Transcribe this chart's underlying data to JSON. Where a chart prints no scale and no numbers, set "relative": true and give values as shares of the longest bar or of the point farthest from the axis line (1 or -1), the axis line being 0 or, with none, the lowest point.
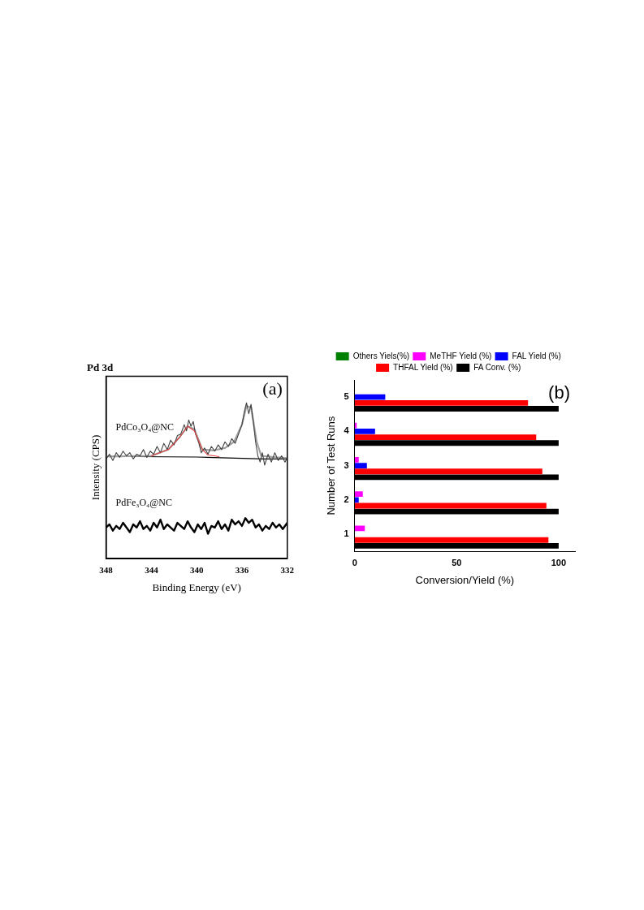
{
  "chart_data": [
    {
      "type": "line",
      "title": "Pd 3d",
      "xlabel": "Binding Energy (eV)",
      "ylabel": "Intensity (CPS)",
      "relative": true,
      "xlim": [
        348,
        332
      ],
      "xticks": [
        348,
        344,
        340,
        336,
        332
      ],
      "grid": false,
      "legend": false,
      "annotations": [
        "(a)"
      ],
      "series": [
        {
          "name": "PdCo₃O₄@NC",
          "color": "#404040",
          "x": [
            348,
            347.7,
            347.4,
            347.1,
            346.8,
            346.5,
            346.2,
            345.9,
            345.6,
            345.3,
            345.0,
            344.7,
            344.4,
            344.1,
            343.8,
            343.5,
            343.2,
            342.9,
            342.6,
            342.3,
            342.0,
            341.7,
            341.4,
            341.1,
            340.9,
            340.7,
            340.5,
            340.3,
            340.1,
            339.8,
            339.6,
            339.3,
            339.0,
            338.7,
            338.4,
            338.1,
            337.8,
            337.5,
            337.2,
            336.9,
            336.6,
            336.3,
            336.0,
            335.8,
            335.6,
            335.4,
            335.2,
            335.0,
            334.8,
            334.6,
            334.4,
            334.2,
            334.0,
            333.7,
            333.4,
            333.1,
            332.8,
            332.5,
            332.2,
            332.0
          ],
          "values": [
            0.64,
            0.67,
            0.63,
            0.68,
            0.65,
            0.69,
            0.66,
            0.68,
            0.64,
            0.67,
            0.66,
            0.7,
            0.65,
            0.69,
            0.67,
            0.72,
            0.68,
            0.74,
            0.7,
            0.76,
            0.73,
            0.79,
            0.8,
            0.86,
            0.82,
            0.89,
            0.85,
            0.88,
            0.8,
            0.74,
            0.68,
            0.71,
            0.67,
            0.72,
            0.69,
            0.73,
            0.7,
            0.75,
            0.72,
            0.77,
            0.74,
            0.8,
            0.86,
            0.94,
            1.0,
            0.93,
            0.99,
            0.88,
            0.75,
            0.66,
            0.62,
            0.68,
            0.6,
            0.67,
            0.62,
            0.68,
            0.63,
            0.66,
            0.62,
            0.65
          ]
        },
        {
          "color": "#a0a0a0",
          "x": [
            348,
            344,
            342.5,
            341.5,
            340.8,
            340.2,
            339.5,
            338.5,
            337.5,
            336.7,
            336.0,
            335.6,
            335.2,
            334.7,
            334.3,
            333,
            332
          ],
          "values": [
            0.655,
            0.66,
            0.7,
            0.78,
            0.85,
            0.83,
            0.7,
            0.695,
            0.71,
            0.75,
            0.86,
            0.98,
            0.97,
            0.75,
            0.66,
            0.65,
            0.645
          ]
        },
        {
          "color": "#e04040",
          "x": [
            344,
            342.5,
            341.5,
            340.8,
            340.2,
            339.5,
            339,
            338
          ],
          "values": [
            0.66,
            0.7,
            0.78,
            0.85,
            0.82,
            0.7,
            0.665,
            0.655
          ]
        },
        {
          "color": "#000000",
          "x": [
            348,
            340,
            334,
            332
          ],
          "values": [
            0.656,
            0.652,
            0.64,
            0.64
          ]
        },
        {
          "name": "PdFe₃O₄@NC",
          "color": "#000000",
          "x": [
            348,
            347.7,
            347.4,
            347.1,
            346.8,
            346.5,
            346.2,
            345.9,
            345.6,
            345.3,
            345.0,
            344.7,
            344.4,
            344.1,
            343.8,
            343.5,
            343.2,
            342.9,
            342.6,
            342.3,
            342.0,
            341.7,
            341.4,
            341.1,
            340.8,
            340.5,
            340.2,
            339.9,
            339.6,
            339.3,
            339.0,
            338.7,
            338.4,
            338.1,
            337.8,
            337.5,
            337.2,
            336.9,
            336.6,
            336.3,
            336.0,
            335.7,
            335.4,
            335.1,
            334.8,
            334.5,
            334.2,
            333.9,
            333.6,
            333.3,
            333.0,
            332.7,
            332.4,
            332.0
          ],
          "values": [
            0.2,
            0.22,
            0.18,
            0.21,
            0.19,
            0.23,
            0.2,
            0.17,
            0.22,
            0.2,
            0.24,
            0.19,
            0.21,
            0.18,
            0.23,
            0.2,
            0.25,
            0.19,
            0.22,
            0.2,
            0.18,
            0.23,
            0.21,
            0.19,
            0.24,
            0.2,
            0.17,
            0.22,
            0.19,
            0.23,
            0.16,
            0.21,
            0.2,
            0.24,
            0.19,
            0.22,
            0.18,
            0.25,
            0.22,
            0.24,
            0.21,
            0.26,
            0.23,
            0.25,
            0.2,
            0.22,
            0.18,
            0.21,
            0.19,
            0.23,
            0.2,
            0.22,
            0.19,
            0.23
          ]
        }
      ]
    },
    {
      "type": "bar",
      "orientation": "horizontal",
      "xlabel": "Conversion/Yield (%)",
      "ylabel": "Number of Test Runs",
      "categories": [
        "5",
        "4",
        "3",
        "2",
        "1"
      ],
      "xlim": [
        0,
        108
      ],
      "xticks": [
        0,
        50,
        100
      ],
      "grid": false,
      "legend": "top",
      "annotations": [
        "(b)"
      ],
      "series": [
        {
          "name": "Others Yiels(%)",
          "color": "#008000",
          "values": [
            0,
            0,
            0,
            0,
            0
          ]
        },
        {
          "name": "MeTHF Yield (%)",
          "color": "#ff00ff",
          "values": [
            0,
            1,
            2,
            4,
            5
          ]
        },
        {
          "name": "FAL Yield (%)",
          "color": "#0000ff",
          "values": [
            15,
            10,
            6,
            2,
            0
          ]
        },
        {
          "name": "THFAL Yield (%)",
          "color": "#ff0000",
          "values": [
            85,
            89,
            92,
            94,
            95
          ]
        },
        {
          "name": "FA Conv. (%)",
          "color": "#000000",
          "values": [
            100,
            100,
            100,
            100,
            100
          ]
        }
      ]
    }
  ]
}
